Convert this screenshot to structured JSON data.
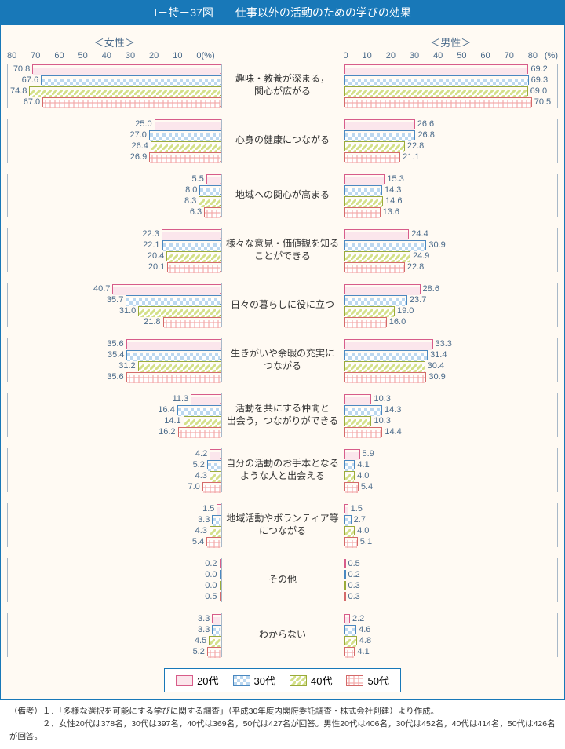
{
  "title": "Ⅰ－特－37図　　仕事以外の活動のための学びの効果",
  "header_female": "＜女性＞",
  "header_male": "＜男性＞",
  "axis": {
    "max": 80,
    "ticks": [
      0,
      10,
      20,
      30,
      40,
      50,
      60,
      70,
      80
    ],
    "unit": "(%)"
  },
  "series": [
    {
      "key": "s20",
      "label": "20代",
      "pattern": "p20",
      "border": "#d75c8a"
    },
    {
      "key": "s30",
      "label": "30代",
      "pattern": "p30",
      "border": "#4a88c0"
    },
    {
      "key": "s40",
      "label": "40代",
      "pattern": "p40",
      "border": "#9aab3a"
    },
    {
      "key": "s50",
      "label": "50代",
      "pattern": "p50",
      "border": "#d46a6a"
    }
  ],
  "categories": [
    {
      "label": "趣味・教養が深まる，\n関心が広がる",
      "female": [
        70.8,
        67.6,
        74.8,
        67.0
      ],
      "male": [
        69.2,
        69.3,
        69.0,
        70.5
      ]
    },
    {
      "label": "心身の健康につながる",
      "female": [
        25.0,
        27.0,
        26.4,
        26.9
      ],
      "male": [
        26.6,
        26.8,
        22.8,
        21.1
      ]
    },
    {
      "label": "地域への関心が高まる",
      "female": [
        5.5,
        8.0,
        8.3,
        6.3
      ],
      "male": [
        15.3,
        14.3,
        14.6,
        13.6
      ]
    },
    {
      "label": "様々な意見・価値観を知る\nことができる",
      "female": [
        22.3,
        22.1,
        20.4,
        20.1
      ],
      "male": [
        24.4,
        30.9,
        24.9,
        22.8
      ]
    },
    {
      "label": "日々の暮らしに役に立つ",
      "female": [
        40.7,
        35.7,
        31.0,
        21.8
      ],
      "male": [
        28.6,
        23.7,
        19.0,
        16.0
      ]
    },
    {
      "label": "生きがいや余暇の充実に\nつながる",
      "female": [
        35.6,
        35.4,
        31.2,
        35.6
      ],
      "male": [
        33.3,
        31.4,
        30.4,
        30.9
      ]
    },
    {
      "label": "活動を共にする仲間と\n出会う，つながりができる",
      "female": [
        11.3,
        16.4,
        14.1,
        16.2
      ],
      "male": [
        10.3,
        14.3,
        10.3,
        14.4
      ]
    },
    {
      "label": "自分の活動のお手本となる\nような人と出会える",
      "female": [
        4.2,
        5.2,
        4.3,
        7.0
      ],
      "male": [
        5.9,
        4.1,
        4.0,
        5.4
      ]
    },
    {
      "label": "地域活動やボランティア等\nにつながる",
      "female": [
        1.5,
        3.3,
        4.3,
        5.4
      ],
      "male": [
        1.5,
        2.7,
        4.0,
        5.1
      ]
    },
    {
      "label": "その他",
      "female": [
        0.2,
        0.0,
        0.0,
        0.5
      ],
      "male": [
        0.5,
        0.2,
        0.3,
        0.3
      ]
    },
    {
      "label": "わからない",
      "female": [
        3.3,
        3.3,
        4.5,
        5.2
      ],
      "male": [
        2.2,
        4.6,
        4.8,
        4.1
      ]
    }
  ],
  "notes": [
    "（備考）１．「多様な選択を可能にする学びに関する調査」（平成30年度内閣府委託調査・株式会社創建）より作成。",
    "　　　　２．女性20代は378名，30代は397名，40代は369名，50代は427名が回答。男性20代は406名，30代は452名，40代は414名，50代は426名が回答。"
  ]
}
